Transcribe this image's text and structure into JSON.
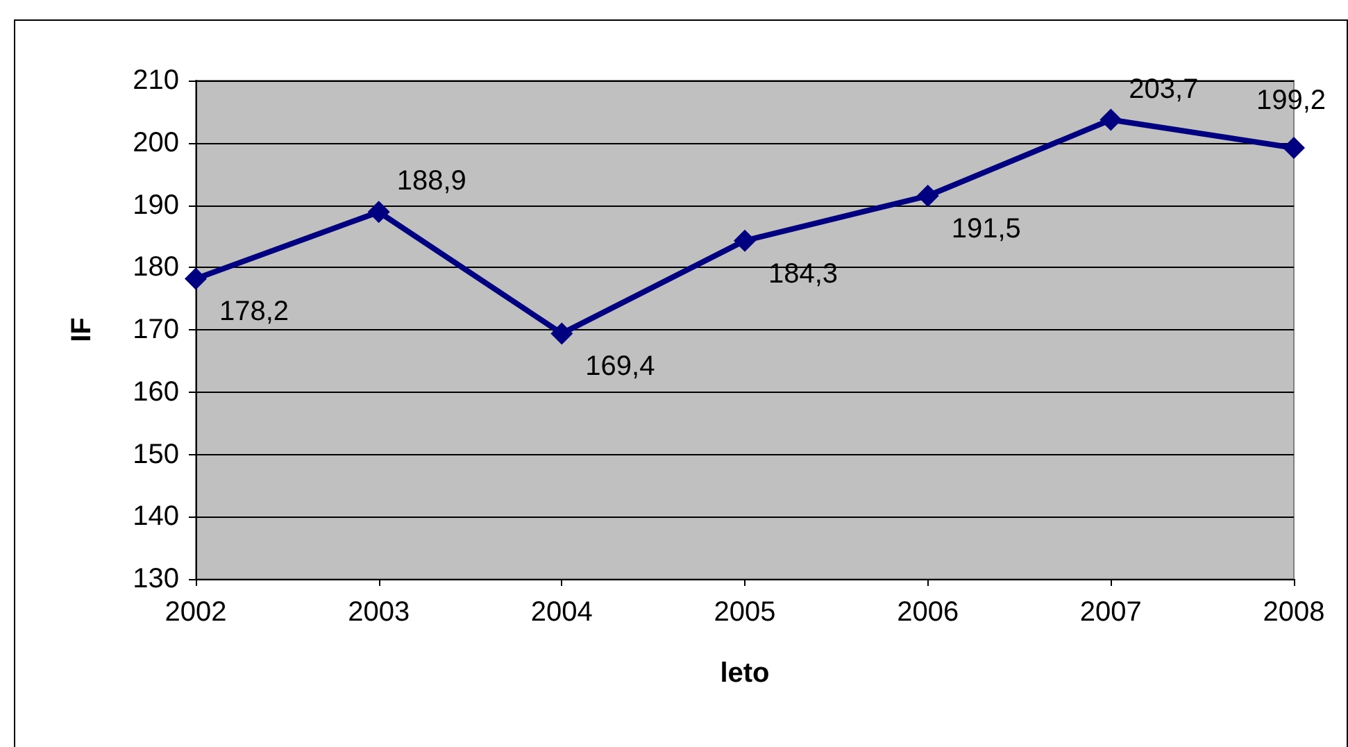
{
  "chart_data": {
    "type": "line",
    "xlabel": "leto",
    "ylabel": "IF",
    "categories": [
      "2002",
      "2003",
      "2004",
      "2005",
      "2006",
      "2007",
      "2008"
    ],
    "series": [
      {
        "color": "#000080",
        "values": [
          178.2,
          188.9,
          169.4,
          184.3,
          191.5,
          203.7,
          199.2
        ],
        "value_labels": [
          "178,2",
          "188,9",
          "169,4",
          "184,3",
          "191,5",
          "203,7",
          "199,2"
        ]
      }
    ],
    "ylim": [
      130,
      210
    ],
    "yticks": [
      130,
      140,
      150,
      160,
      170,
      180,
      190,
      200,
      210
    ],
    "grid": "y",
    "marker": "diamond",
    "line_style": "solid"
  }
}
